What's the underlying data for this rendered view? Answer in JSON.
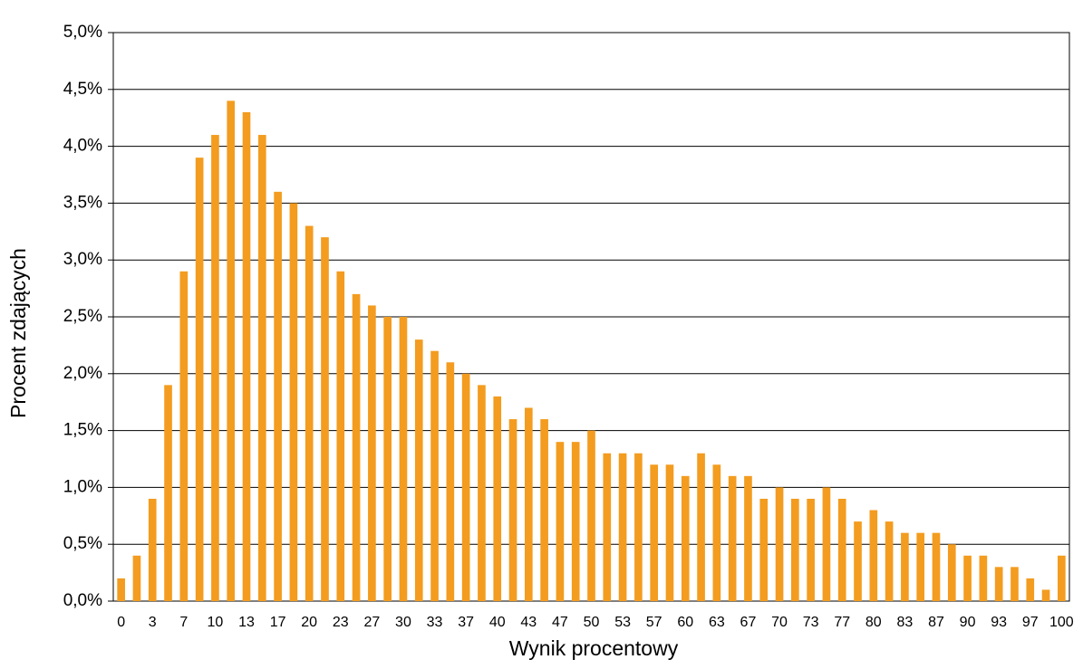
{
  "chart_data": {
    "type": "bar",
    "x_label": "Wynik procentowy",
    "y_label": "Procent zdających",
    "categories": [
      "0",
      null,
      "3",
      null,
      "7",
      null,
      "10",
      null,
      "13",
      null,
      "17",
      null,
      "20",
      null,
      "23",
      null,
      "27",
      null,
      "30",
      null,
      "33",
      null,
      "37",
      null,
      "40",
      null,
      "43",
      null,
      "47",
      null,
      "50",
      null,
      "53",
      null,
      "57",
      null,
      "60",
      null,
      "63",
      null,
      "67",
      null,
      "70",
      null,
      "73",
      null,
      "77",
      null,
      "80",
      null,
      "83",
      null,
      "87",
      null,
      "90",
      null,
      "93",
      null,
      "97",
      null,
      "100"
    ],
    "values": [
      0.2,
      0.4,
      0.9,
      1.9,
      2.9,
      3.9,
      4.1,
      4.4,
      4.3,
      4.1,
      3.6,
      3.5,
      3.3,
      3.2,
      2.9,
      2.7,
      2.6,
      2.5,
      2.5,
      2.3,
      2.2,
      2.1,
      2.0,
      1.9,
      1.8,
      1.6,
      1.7,
      1.6,
      1.4,
      1.4,
      1.5,
      1.3,
      1.3,
      1.3,
      1.2,
      1.2,
      1.1,
      1.3,
      1.2,
      1.1,
      1.1,
      0.9,
      1.0,
      0.9,
      0.9,
      1.0,
      0.9,
      0.7,
      0.8,
      0.7,
      0.6,
      0.6,
      0.6,
      0.5,
      0.4,
      0.4,
      0.3,
      0.3,
      0.2,
      0.1,
      0.4
    ],
    "color": "#f39c1f",
    "ylim": [
      0,
      5
    ],
    "yticks": [
      {
        "value": 0,
        "label": "0,0%"
      },
      {
        "value": 0.5,
        "label": "0,5%"
      },
      {
        "value": 1,
        "label": "1,0%"
      },
      {
        "value": 1.5,
        "label": "1,5%"
      },
      {
        "value": 2,
        "label": "2,0%"
      },
      {
        "value": 2.5,
        "label": "2,5%"
      },
      {
        "value": 3,
        "label": "3,0%"
      },
      {
        "value": 3.5,
        "label": "3,5%"
      },
      {
        "value": 4,
        "label": "4,0%"
      },
      {
        "value": 4.5,
        "label": "4,5%"
      },
      {
        "value": 5,
        "label": "5,0%"
      }
    ],
    "grid": true
  }
}
